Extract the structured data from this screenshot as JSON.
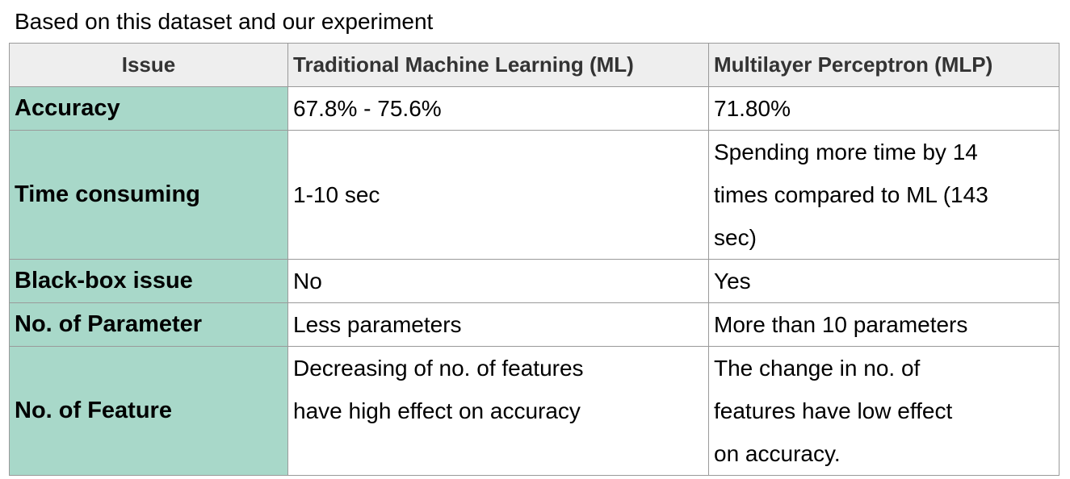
{
  "caption": "Based on this dataset and our experiment",
  "table": {
    "headers": [
      "Issue",
      "Traditional Machine Learning (ML)",
      "Multilayer Perceptron (MLP)"
    ],
    "rows": [
      {
        "issue": "Accuracy",
        "ml": [
          "67.8% - 75.6%"
        ],
        "mlp": [
          "71.80%"
        ]
      },
      {
        "issue": "Time consuming",
        "ml": [
          "1-10 sec"
        ],
        "mlp": [
          "Spending more time by 14",
          "times compared to ML  (143",
          "sec)"
        ]
      },
      {
        "issue": "Black-box issue",
        "ml": [
          "No"
        ],
        "mlp": [
          "Yes"
        ]
      },
      {
        "issue": "No. of Parameter",
        "ml": [
          "Less parameters"
        ],
        "mlp": [
          "More than 10 parameters"
        ]
      },
      {
        "issue": "No. of Feature",
        "ml": [
          "Decreasing of no. of features",
          "have high effect on accuracy"
        ],
        "mlp": [
          "The change in no. of",
          "features  have low effect",
          "on accuracy."
        ]
      }
    ]
  },
  "colors": {
    "issue_column_bg": "#a8d8c9",
    "header_bg": "#eeeeee",
    "border": "#9a9a9a"
  }
}
